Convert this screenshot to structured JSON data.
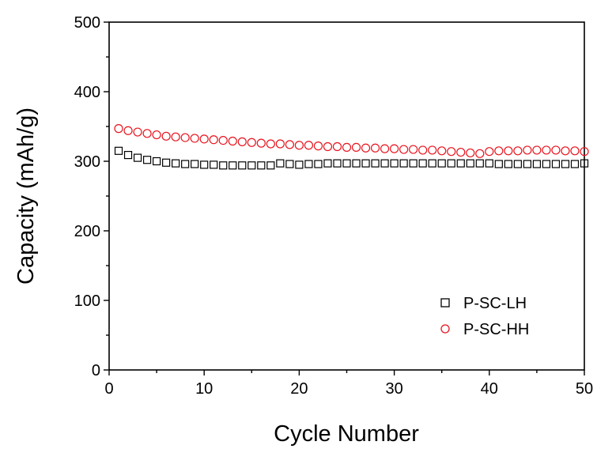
{
  "chart_data": {
    "type": "scatter",
    "xlabel": "Cycle Number",
    "ylabel": "Capacity (mAh/g)",
    "xlim": [
      0,
      50
    ],
    "ylim": [
      0,
      500
    ],
    "xticks": [
      0,
      10,
      20,
      30,
      40,
      50
    ],
    "yticks": [
      0,
      100,
      200,
      300,
      400,
      500
    ],
    "x_tick_labels": [
      "0",
      "10",
      "20",
      "30",
      "40",
      "50"
    ],
    "y_tick_labels": [
      "0",
      "100",
      "200",
      "300",
      "400",
      "500"
    ],
    "grid": false,
    "legend_position": "bottom-right",
    "x": [
      1,
      2,
      3,
      4,
      5,
      6,
      7,
      8,
      9,
      10,
      11,
      12,
      13,
      14,
      15,
      16,
      17,
      18,
      19,
      20,
      21,
      22,
      23,
      24,
      25,
      26,
      27,
      28,
      29,
      30,
      31,
      32,
      33,
      34,
      35,
      36,
      37,
      38,
      39,
      40,
      41,
      42,
      43,
      44,
      45,
      46,
      47,
      48,
      49,
      50
    ],
    "series": [
      {
        "name": "P-SC-LH",
        "marker": "square",
        "color": "#000000",
        "values": [
          315,
          309,
          305,
          302,
          300,
          298,
          297,
          296,
          296,
          295,
          295,
          294,
          294,
          294,
          294,
          294,
          294,
          297,
          296,
          295,
          296,
          296,
          297,
          297,
          297,
          297,
          297,
          297,
          297,
          297,
          297,
          297,
          297,
          297,
          297,
          297,
          297,
          297,
          297,
          297,
          296,
          296,
          296,
          296,
          296,
          296,
          296,
          296,
          296,
          297
        ]
      },
      {
        "name": "P-SC-HH",
        "marker": "circle",
        "color": "#e8141e",
        "values": [
          347,
          344,
          342,
          340,
          338,
          336,
          335,
          334,
          333,
          332,
          331,
          330,
          329,
          328,
          327,
          326,
          325,
          325,
          324,
          323,
          323,
          322,
          321,
          321,
          320,
          320,
          319,
          319,
          318,
          318,
          317,
          317,
          316,
          316,
          315,
          314,
          313,
          312,
          311,
          314,
          315,
          315,
          315,
          316,
          316,
          316,
          316,
          315,
          315,
          314
        ]
      }
    ]
  }
}
